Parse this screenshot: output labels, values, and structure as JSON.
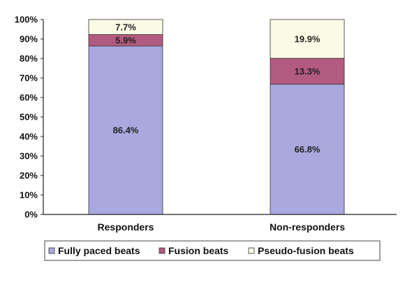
{
  "chart_data": {
    "type": "bar",
    "stacked": true,
    "categories": [
      "Responders",
      "Non-responders"
    ],
    "series": [
      {
        "name": "Fully paced beats",
        "values": [
          86.4,
          66.8
        ],
        "color": "#a9a9df",
        "labels": [
          "86.4%",
          "66.8%"
        ]
      },
      {
        "name": "Fusion beats",
        "values": [
          5.9,
          13.3
        ],
        "color": "#b35a80",
        "labels": [
          "5.9%",
          "13.3%"
        ]
      },
      {
        "name": "Pseudo-fusion beats",
        "values": [
          7.7,
          19.9
        ],
        "color": "#fbfbe6",
        "labels": [
          "7.7%",
          "19.9%"
        ]
      }
    ],
    "ylim": [
      0,
      100
    ],
    "yticks": [
      "0%",
      "10%",
      "20%",
      "30%",
      "40%",
      "50%",
      "60%",
      "70%",
      "80%",
      "90%",
      "100%"
    ],
    "grid": false,
    "legend_position": "bottom",
    "title": "",
    "xlabel": "",
    "ylabel": ""
  }
}
